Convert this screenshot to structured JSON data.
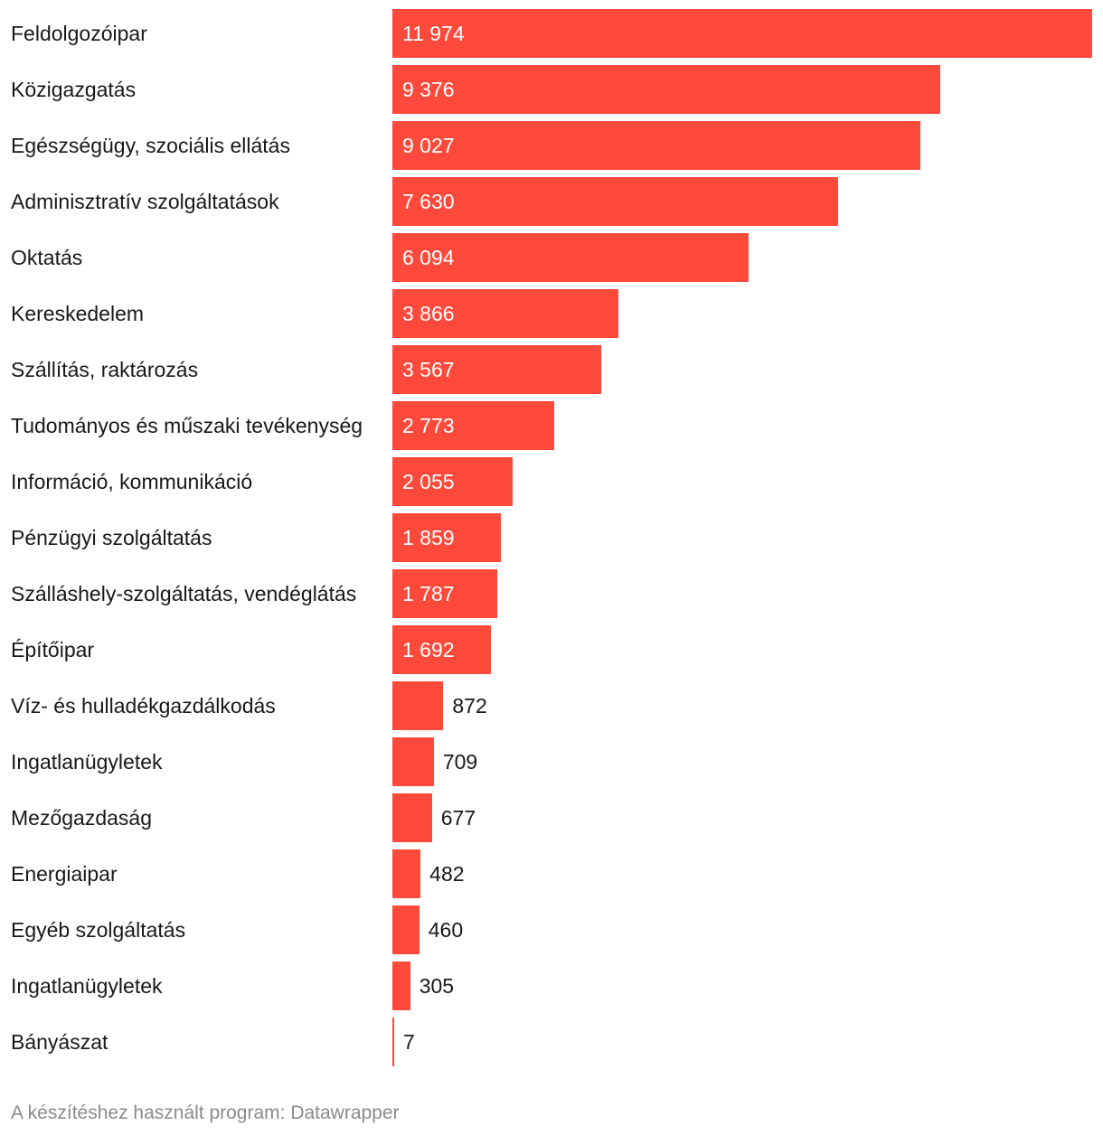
{
  "chart_data": {
    "type": "bar",
    "orientation": "horizontal",
    "title": "",
    "xlabel": "",
    "ylabel": "",
    "xlim": [
      0,
      11974
    ],
    "bar_color": "#ff4a3b",
    "categories": [
      "Feldolgozóipar",
      "Közigazgatás",
      "Egészségügy, szociális ellátás",
      "Adminisztratív szolgáltatások",
      "Oktatás",
      "Kereskedelem",
      "Szállítás, raktározás",
      "Tudományos és műszaki tevékenység",
      "Információ, kommunikáció",
      "Pénzügyi szolgáltatás",
      "Szálláshely-szolgáltatás, vendéglátás",
      "Építőipar",
      "Víz- és hulladékgazdálkodás",
      "Ingatlanügyletek",
      "Mezőgazdaság",
      "Energiaipar",
      "Egyéb szolgáltatás",
      "Ingatlanügyletek",
      "Bányászat"
    ],
    "values": [
      11974,
      9376,
      9027,
      7630,
      6094,
      3866,
      3567,
      2773,
      2055,
      1859,
      1787,
      1692,
      872,
      709,
      677,
      482,
      460,
      305,
      7
    ],
    "value_labels": [
      "11 974",
      "9 376",
      "9 027",
      "7 630",
      "6 094",
      "3 866",
      "3 567",
      "2 773",
      "2 055",
      "1 859",
      "1 787",
      "1 692",
      "872",
      "709",
      "677",
      "482",
      "460",
      "305",
      "7"
    ]
  },
  "footer": {
    "credit": "A készítéshez használt program: Datawrapper"
  }
}
